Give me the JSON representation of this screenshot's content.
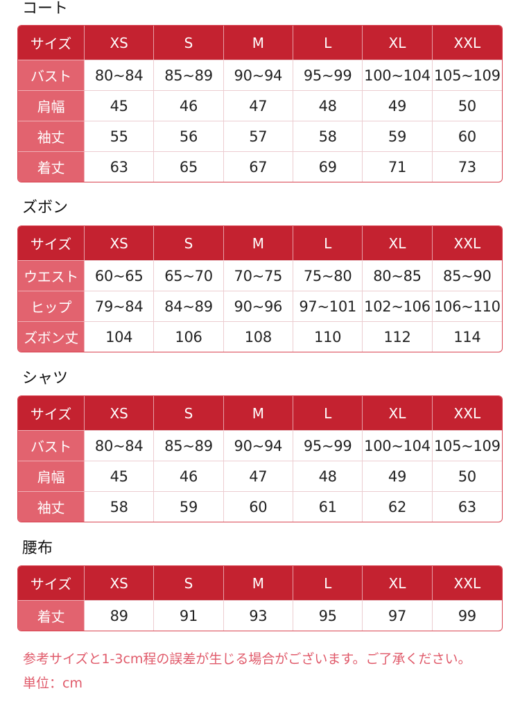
{
  "sizes": [
    "XS",
    "S",
    "M",
    "L",
    "XL",
    "XXL"
  ],
  "header_label": "サイズ",
  "sections": [
    {
      "title": "コート",
      "rows": [
        {
          "label": "バスト",
          "values": [
            "80~84",
            "85~89",
            "90~94",
            "95~99",
            "100~104",
            "105~109"
          ]
        },
        {
          "label": "肩幅",
          "values": [
            "45",
            "46",
            "47",
            "48",
            "49",
            "50"
          ]
        },
        {
          "label": "袖丈",
          "values": [
            "55",
            "56",
            "57",
            "58",
            "59",
            "60"
          ]
        },
        {
          "label": "着丈",
          "values": [
            "63",
            "65",
            "67",
            "69",
            "71",
            "73"
          ]
        }
      ]
    },
    {
      "title": "ズボン",
      "rows": [
        {
          "label": "ウエスト",
          "values": [
            "60~65",
            "65~70",
            "70~75",
            "75~80",
            "80~85",
            "85~90"
          ]
        },
        {
          "label": "ヒップ",
          "values": [
            "79~84",
            "84~89",
            "90~96",
            "97~101",
            "102~106",
            "106~110"
          ]
        },
        {
          "label": "ズボン丈",
          "values": [
            "104",
            "106",
            "108",
            "110",
            "112",
            "114"
          ]
        }
      ]
    },
    {
      "title": "シャツ",
      "rows": [
        {
          "label": "バスト",
          "values": [
            "80~84",
            "85~89",
            "90~94",
            "95~99",
            "100~104",
            "105~109"
          ]
        },
        {
          "label": "肩幅",
          "values": [
            "45",
            "46",
            "47",
            "48",
            "49",
            "50"
          ]
        },
        {
          "label": "袖丈",
          "values": [
            "58",
            "59",
            "60",
            "61",
            "62",
            "63"
          ]
        }
      ]
    },
    {
      "title": "腰布",
      "rows": [
        {
          "label": "着丈",
          "values": [
            "89",
            "91",
            "93",
            "95",
            "97",
            "99"
          ]
        }
      ]
    }
  ],
  "notes": {
    "disclaimer": "参考サイズと1-3cm程の誤差が生じる場合がございます。ご了承ください。",
    "unit": "単位：cm"
  },
  "colors": {
    "header": "#c42230",
    "label_column": "#e2636f",
    "note_text": "#e05a6a"
  }
}
